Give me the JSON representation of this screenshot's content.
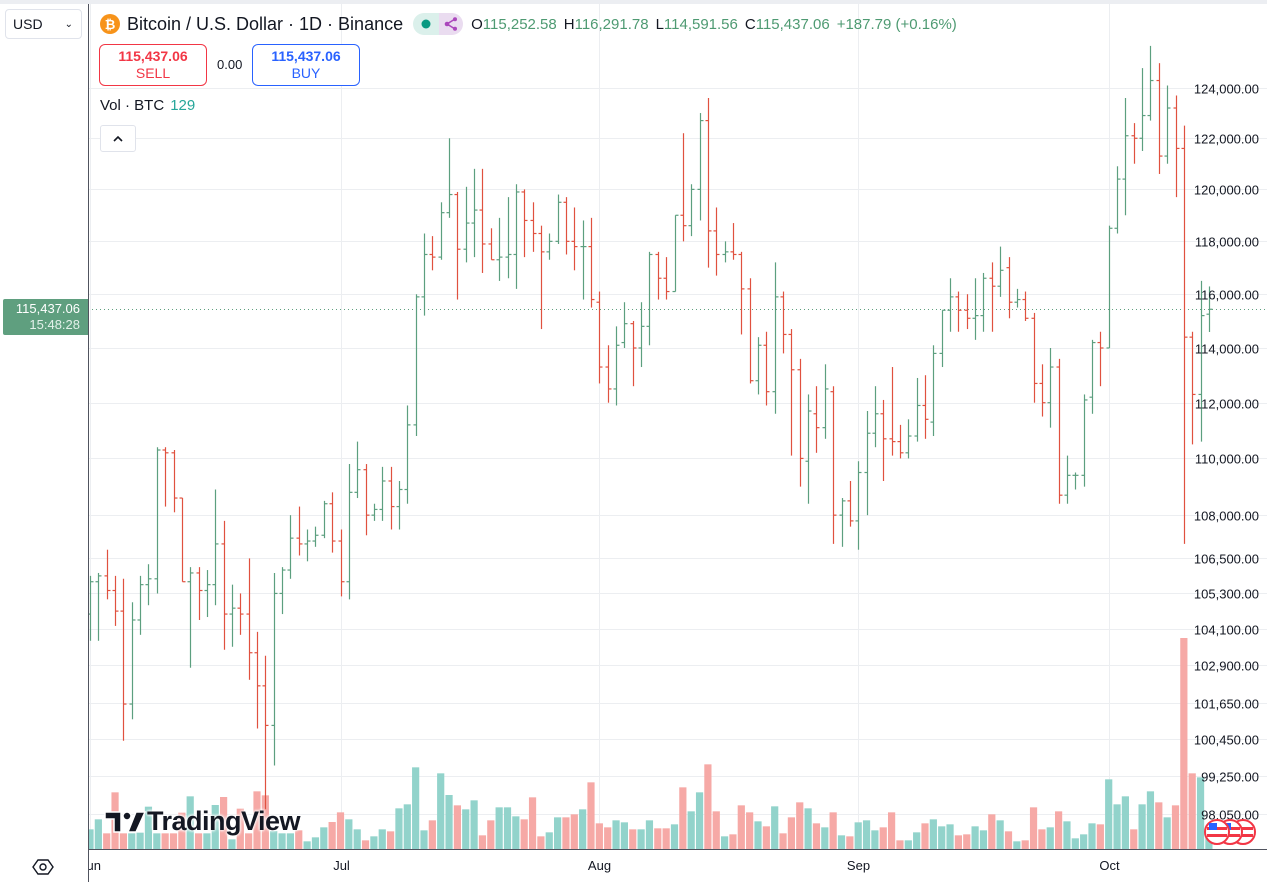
{
  "currency_selector": {
    "value": "USD"
  },
  "header": {
    "symbol_icon": "bitcoin-icon",
    "title": "Bitcoin / U.S. Dollar · 1D · Binance",
    "ohlc": {
      "o_label": "O",
      "o": "115,252.58",
      "h_label": "H",
      "h": "116,291.78",
      "l_label": "L",
      "l": "114,591.56",
      "c_label": "C",
      "c": "115,437.06",
      "change": "+187.79 (+0.16%)"
    }
  },
  "trade": {
    "sell_price": "115,437.06",
    "sell_label": "SELL",
    "spread": "0.00",
    "buy_price": "115,437.06",
    "buy_label": "BUY"
  },
  "volume_legend": {
    "label": "Vol · BTC",
    "value": "129"
  },
  "price_axis": {
    "ticks": [
      "124,000.00",
      "122,000.00",
      "120,000.00",
      "118,000.00",
      "116,000.00",
      "114,000.00",
      "112,000.00",
      "110,000.00",
      "108,000.00",
      "106,500.00",
      "105,300.00",
      "104,100.00",
      "102,900.00",
      "101,650.00",
      "100,450.00",
      "99,250.00",
      "98,050.00"
    ],
    "last_price": "115,437.06",
    "countdown": "15:48:28"
  },
  "time_axis": {
    "labels": [
      {
        "text": "Jun",
        "index": 0
      },
      {
        "text": "Jul",
        "index": 30
      },
      {
        "text": "Aug",
        "index": 61
      },
      {
        "text": "Sep",
        "index": 92
      },
      {
        "text": "Oct",
        "index": 122
      }
    ]
  },
  "branding": {
    "logo_text": "TradingView"
  },
  "colors": {
    "up": "#5c9f7f",
    "down": "#e0513f",
    "vol_up": "#92d3cb",
    "vol_down": "#f6a9a6",
    "sell": "#f23645",
    "buy": "#2962ff",
    "last_price_bg": "#5f9f7f"
  },
  "chart_data": {
    "type": "ohlc",
    "title": "Bitcoin / U.S. Dollar · 1D · Binance",
    "scale": "log",
    "ylim": [
      97500,
      126500
    ],
    "x_start": "Jun 1",
    "ohlc_fields": [
      "open",
      "high",
      "low",
      "close"
    ],
    "ohlc": [
      [
        104600,
        105900,
        103700,
        105700
      ],
      [
        105700,
        106000,
        103700,
        105900
      ],
      [
        105900,
        106800,
        105100,
        105400
      ],
      [
        105400,
        105900,
        104200,
        104700
      ],
      [
        104700,
        105800,
        100400,
        101600
      ],
      [
        101600,
        105000,
        101100,
        104400
      ],
      [
        104400,
        105900,
        103900,
        105600
      ],
      [
        105600,
        106300,
        104900,
        105800
      ],
      [
        105800,
        110400,
        105300,
        110300
      ],
      [
        110300,
        110400,
        108300,
        110200
      ],
      [
        110200,
        110300,
        108100,
        108600
      ],
      [
        108600,
        108600,
        105700,
        105700
      ],
      [
        105700,
        106200,
        102800,
        106000
      ],
      [
        106000,
        106200,
        104400,
        105400
      ],
      [
        105400,
        106100,
        104500,
        105600
      ],
      [
        105600,
        108900,
        104900,
        107000
      ],
      [
        107000,
        107800,
        103400,
        104600
      ],
      [
        104600,
        105600,
        103500,
        104800
      ],
      [
        104800,
        105300,
        103900,
        104600
      ],
      [
        104600,
        106500,
        102400,
        103300
      ],
      [
        103300,
        104000,
        100800,
        102200
      ],
      [
        102200,
        103200,
        98200,
        100900
      ],
      [
        100900,
        106000,
        99600,
        105300
      ],
      [
        105300,
        106200,
        104600,
        106100
      ],
      [
        106100,
        108000,
        105800,
        107200
      ],
      [
        107200,
        108300,
        106600,
        107000
      ],
      [
        107000,
        107500,
        106400,
        107100
      ],
      [
        107100,
        107600,
        106900,
        107300
      ],
      [
        107300,
        108500,
        107200,
        108400
      ],
      [
        108400,
        108800,
        106700,
        107100
      ],
      [
        107100,
        107500,
        105200,
        105700
      ],
      [
        105700,
        109800,
        105100,
        108800
      ],
      [
        108800,
        110600,
        108600,
        109600
      ],
      [
        109600,
        109800,
        107300,
        108000
      ],
      [
        108000,
        108400,
        107800,
        108200
      ],
      [
        108200,
        109700,
        107800,
        109200
      ],
      [
        109200,
        109700,
        107500,
        108300
      ],
      [
        108300,
        109200,
        107500,
        108900
      ],
      [
        108900,
        111900,
        108400,
        111200
      ],
      [
        111200,
        116000,
        110800,
        115900
      ],
      [
        115900,
        118300,
        115200,
        117500
      ],
      [
        117500,
        118200,
        116900,
        117400
      ],
      [
        117400,
        119500,
        117300,
        119100
      ],
      [
        119100,
        122000,
        118900,
        119800
      ],
      [
        119800,
        119900,
        115800,
        117700
      ],
      [
        117700,
        120100,
        117200,
        118700
      ],
      [
        118700,
        120800,
        117400,
        119200
      ],
      [
        119200,
        120800,
        116800,
        117900
      ],
      [
        117900,
        118500,
        117300,
        117300
      ],
      [
        117300,
        118900,
        116500,
        117400
      ],
      [
        117400,
        119700,
        116600,
        117500
      ],
      [
        117500,
        120200,
        116200,
        119900
      ],
      [
        119900,
        120000,
        117400,
        118800
      ],
      [
        118800,
        119500,
        117600,
        118300
      ],
      [
        118300,
        118600,
        114700,
        117600
      ],
      [
        117600,
        118300,
        117300,
        118000
      ],
      [
        118000,
        119800,
        117900,
        119500
      ],
      [
        119500,
        119700,
        117500,
        118000
      ],
      [
        118000,
        119300,
        116900,
        117800
      ],
      [
        117800,
        118800,
        115800,
        117800
      ],
      [
        117800,
        118900,
        115500,
        115800
      ],
      [
        115700,
        116100,
        112700,
        113300
      ],
      [
        113300,
        114100,
        112000,
        112500
      ],
      [
        112500,
        114800,
        111900,
        114100
      ],
      [
        114200,
        115700,
        114000,
        114900
      ],
      [
        114900,
        115000,
        112600,
        114000
      ],
      [
        114000,
        115700,
        113300,
        114800
      ],
      [
        114800,
        117600,
        114100,
        117500
      ],
      [
        117500,
        117600,
        115800,
        116600
      ],
      [
        116600,
        117400,
        115800,
        116100
      ],
      [
        116100,
        119000,
        116100,
        119000
      ],
      [
        119000,
        122200,
        118000,
        118600
      ],
      [
        118600,
        120200,
        118200,
        120000
      ],
      [
        120000,
        123000,
        118800,
        122700
      ],
      [
        122700,
        123600,
        117000,
        118400
      ],
      [
        118400,
        119300,
        116700,
        117500
      ],
      [
        117500,
        118000,
        117200,
        117600
      ],
      [
        117600,
        118700,
        117300,
        117500
      ],
      [
        117500,
        117600,
        114500,
        116200
      ],
      [
        116200,
        116600,
        112700,
        112800
      ],
      [
        112800,
        114400,
        112300,
        114100
      ],
      [
        114100,
        114600,
        111900,
        112400
      ],
      [
        112400,
        117200,
        111600,
        115900
      ],
      [
        115900,
        116100,
        113800,
        114500
      ],
      [
        114500,
        114700,
        110100,
        113200
      ],
      [
        113200,
        113600,
        109000,
        110000
      ],
      [
        109900,
        112300,
        108400,
        111700
      ],
      [
        111600,
        112600,
        110200,
        111100
      ],
      [
        111100,
        113400,
        110700,
        112500
      ],
      [
        112400,
        112600,
        107000,
        108000
      ],
      [
        108000,
        108600,
        106900,
        108500
      ],
      [
        108500,
        109200,
        107600,
        107800
      ],
      [
        107800,
        109900,
        106800,
        109500
      ],
      [
        109500,
        111700,
        108000,
        110900
      ],
      [
        110900,
        112600,
        110400,
        111600
      ],
      [
        111600,
        112100,
        109200,
        110700
      ],
      [
        110700,
        113300,
        110100,
        110600
      ],
      [
        110600,
        111200,
        110000,
        110200
      ],
      [
        110200,
        111400,
        110000,
        110800
      ],
      [
        110800,
        112900,
        110600,
        111900
      ],
      [
        111900,
        113000,
        110700,
        111400
      ],
      [
        111300,
        114100,
        110800,
        113800
      ],
      [
        113800,
        115400,
        113300,
        115400
      ],
      [
        115400,
        116600,
        114600,
        115900
      ],
      [
        115900,
        116100,
        114600,
        115400
      ],
      [
        115400,
        116000,
        114700,
        115100
      ],
      [
        115100,
        116600,
        114300,
        115200
      ],
      [
        115200,
        116800,
        114600,
        116600
      ],
      [
        116600,
        117200,
        114600,
        116300
      ],
      [
        116300,
        117800,
        115900,
        116900
      ],
      [
        117000,
        117400,
        115100,
        115700
      ],
      [
        115700,
        116200,
        115500,
        115800
      ],
      [
        115800,
        116100,
        115000,
        115100
      ],
      [
        115100,
        115300,
        112000,
        112700
      ],
      [
        112700,
        113400,
        111500,
        112000
      ],
      [
        112000,
        114000,
        111100,
        113300
      ],
      [
        113300,
        113600,
        108400,
        108700
      ],
      [
        108700,
        110100,
        108400,
        109400
      ],
      [
        109400,
        109500,
        108900,
        109400
      ],
      [
        109400,
        112300,
        109000,
        112100
      ],
      [
        112200,
        114300,
        111600,
        114200
      ],
      [
        114200,
        114600,
        112600,
        114000
      ],
      [
        114000,
        118600,
        114000,
        118500
      ],
      [
        118500,
        120900,
        118300,
        120400
      ],
      [
        120400,
        123600,
        119000,
        122100
      ],
      [
        122100,
        122600,
        121000,
        122000
      ],
      [
        122000,
        124800,
        121500,
        122900
      ],
      [
        122900,
        125700,
        122700,
        124300
      ],
      [
        124300,
        125000,
        120600,
        121300
      ],
      [
        121300,
        124100,
        121000,
        123200
      ],
      [
        123200,
        123700,
        119700,
        121600
      ],
      [
        121600,
        122500,
        107000,
        114400
      ],
      [
        114400,
        114600,
        110500,
        112300
      ],
      [
        112300,
        116500,
        110600,
        115200
      ],
      [
        115252.58,
        116291.78,
        114591.56,
        115437.06
      ]
    ],
    "volume": [
      118,
      178,
      94,
      340,
      94,
      94,
      98,
      254,
      94,
      94,
      94,
      218,
      316,
      94,
      94,
      264,
      312,
      58,
      242,
      94,
      346,
      322,
      108,
      94,
      94,
      112,
      46,
      70,
      130,
      162,
      220,
      178,
      118,
      52,
      76,
      118,
      106,
      244,
      268,
      490,
      112,
      172,
      454,
      324,
      262,
      238,
      292,
      82,
      172,
      250,
      250,
      196,
      178,
      310,
      76,
      100,
      190,
      190,
      208,
      238,
      400,
      154,
      130,
      172,
      160,
      118,
      118,
      172,
      124,
      124,
      148,
      370,
      226,
      340,
      508,
      226,
      76,
      88,
      262,
      220,
      166,
      136,
      256,
      94,
      190,
      280,
      244,
      154,
      130,
      220,
      82,
      76,
      160,
      172,
      112,
      130,
      220,
      52,
      52,
      100,
      154,
      178,
      136,
      148,
      82,
      88,
      136,
      112,
      208,
      172,
      106,
      46,
      52,
      250,
      118,
      130,
      226,
      166,
      64,
      88,
      154,
      148,
      418,
      268,
      316,
      118,
      268,
      346,
      280,
      190,
      262,
      1266,
      454,
      430,
      129
    ],
    "last_price": 115437.06
  }
}
